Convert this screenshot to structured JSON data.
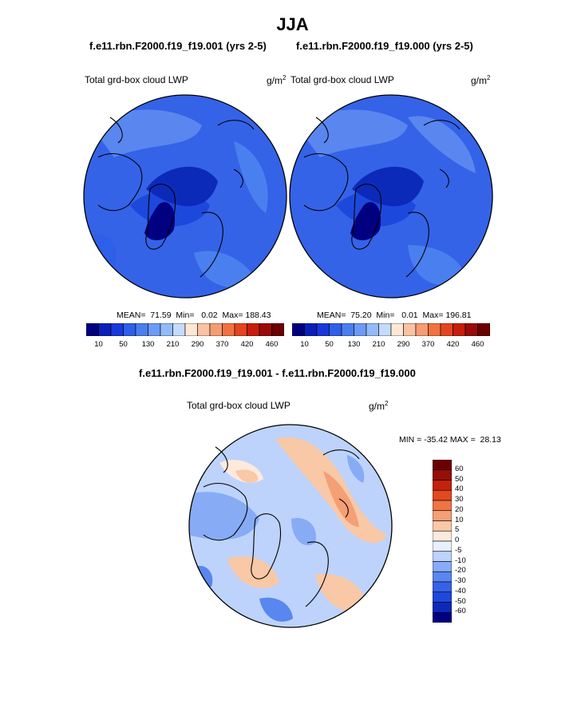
{
  "page": {
    "title": "JJA",
    "diff_title": "f.e11.rbn.F2000.f19_f19.001 - f.e11.rbn.F2000.f19_f19.000"
  },
  "colors": {
    "seq": [
      "#000080",
      "#0a1fb8",
      "#1838dc",
      "#2e5fe8",
      "#4a7ff0",
      "#6b9bf6",
      "#93bbfa",
      "#c4dbfd",
      "#fde8d6",
      "#f9c3a1",
      "#f59c73",
      "#f2723f",
      "#e54420",
      "#c81d0c",
      "#9a0a06",
      "#6b0000"
    ],
    "diff": [
      "#000080",
      "#0c2aba",
      "#1d48dc",
      "#3463e8",
      "#5a86f0",
      "#88abf6",
      "#bdd3fb",
      "#e8f0fd",
      "#fdeadd",
      "#f9c8a6",
      "#f49f75",
      "#ee7446",
      "#e2491e",
      "#c3230b",
      "#941006",
      "#6b0000"
    ],
    "ocean_base": "#3463e8",
    "coast": "#000000"
  },
  "chart_data": [
    {
      "type": "heatmap",
      "panel": "left",
      "case": "f.e11.rbn.F2000.f19_f19.001 (yrs 2-5)",
      "variable": "Total grd-box cloud LWP",
      "units_base": "g/m",
      "units_sup": "2",
      "projection": "polar-stereographic (North Pole)",
      "stats": {
        "mean": "71.59",
        "min": "0.02",
        "max": "188.43"
      },
      "stats_text": "MEAN=  71.59  Min=   0.02  Max= 188.43",
      "colorbar_levels": [
        10,
        50,
        130,
        210,
        290,
        370,
        420,
        460
      ],
      "colorbar_tick_labels": [
        "10",
        "50",
        "130",
        "210",
        "290",
        "370",
        "420",
        "460"
      ]
    },
    {
      "type": "heatmap",
      "panel": "right",
      "case": "f.e11.rbn.F2000.f19_f19.000 (yrs 2-5)",
      "variable": "Total grd-box cloud LWP",
      "units_base": "g/m",
      "units_sup": "2",
      "projection": "polar-stereographic (North Pole)",
      "stats": {
        "mean": "75.20",
        "min": "0.01",
        "max": "196.81"
      },
      "stats_text": "MEAN=  75.20  Min=   0.01  Max= 196.81",
      "colorbar_levels": [
        10,
        50,
        130,
        210,
        290,
        370,
        420,
        460
      ],
      "colorbar_tick_labels": [
        "10",
        "50",
        "130",
        "210",
        "290",
        "370",
        "420",
        "460"
      ]
    },
    {
      "type": "heatmap",
      "panel": "difference",
      "case": "f.e11.rbn.F2000.f19_f19.001 - f.e11.rbn.F2000.f19_f19.000",
      "variable": "Total grd-box cloud LWP",
      "units_base": "g/m",
      "units_sup": "2",
      "projection": "polar-stereographic (North Pole)",
      "stats": {
        "min": "-35.42",
        "max": "28.13"
      },
      "stats_text": "MIN = -35.42 MAX =  28.13",
      "colorbar_levels": [
        60,
        50,
        40,
        30,
        20,
        10,
        5,
        0,
        -5,
        -10,
        -20,
        -30,
        -40,
        -50,
        -60
      ],
      "colorbar_tick_labels": [
        "60",
        "50",
        "40",
        "30",
        "20",
        "10",
        "5",
        "0",
        "-5",
        "-10",
        "-20",
        "-30",
        "-40",
        "-50",
        "-60"
      ]
    }
  ]
}
